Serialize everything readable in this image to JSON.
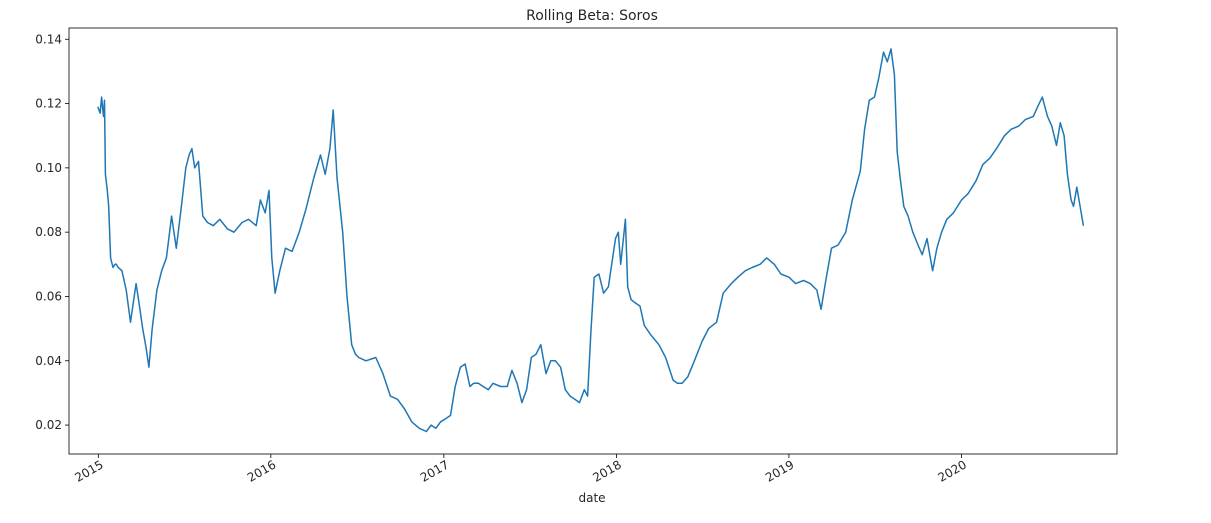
{
  "chart_data": {
    "type": "line",
    "title": "Rolling Beta: Soros",
    "xlabel": "date",
    "ylabel": "",
    "xlim": [
      "2014-10-31",
      "2020-11-25"
    ],
    "ylim": [
      0.011,
      0.1435
    ],
    "x_ticks": [
      "2015-01-01",
      "2016-01-01",
      "2017-01-01",
      "2018-01-01",
      "2019-01-01",
      "2020-01-01"
    ],
    "x_tick_labels": [
      "2015",
      "2016",
      "2017",
      "2018",
      "2019",
      "2020"
    ],
    "y_ticks": [
      0.02,
      0.04,
      0.06,
      0.08,
      0.1,
      0.12,
      0.14
    ],
    "y_tick_labels": [
      "0.02",
      "0.04",
      "0.06",
      "0.08",
      "0.10",
      "0.12",
      "0.14"
    ],
    "grid": false,
    "line_color": "#1f77b4",
    "series": [
      {
        "x": [
          "2014-12-31",
          "2015-01-05",
          "2015-01-08",
          "2015-01-12",
          "2015-01-14",
          "2015-01-16",
          "2015-01-20",
          "2015-01-23",
          "2015-01-27",
          "2015-02-01",
          "2015-02-05",
          "2015-02-08",
          "2015-02-12",
          "2015-02-20",
          "2015-03-01",
          "2015-03-10",
          "2015-03-18",
          "2015-03-22",
          "2015-03-28",
          "2015-04-05",
          "2015-04-12",
          "2015-04-18",
          "2015-04-25",
          "2015-05-05",
          "2015-05-15",
          "2015-05-25",
          "2015-06-05",
          "2015-06-15",
          "2015-06-25",
          "2015-07-05",
          "2015-07-12",
          "2015-07-18",
          "2015-07-24",
          "2015-08-01",
          "2015-08-10",
          "2015-08-20",
          "2015-09-01",
          "2015-09-15",
          "2015-10-01",
          "2015-10-15",
          "2015-11-01",
          "2015-11-15",
          "2015-12-01",
          "2015-12-10",
          "2015-12-20",
          "2015-12-28",
          "2016-01-03",
          "2016-01-10",
          "2016-01-20",
          "2016-02-01",
          "2016-02-15",
          "2016-03-01",
          "2016-03-15",
          "2016-04-01",
          "2016-04-15",
          "2016-04-25",
          "2016-05-05",
          "2016-05-12",
          "2016-05-20",
          "2016-06-01",
          "2016-06-10",
          "2016-06-20",
          "2016-06-28",
          "2016-07-05",
          "2016-07-20",
          "2016-08-10",
          "2016-08-25",
          "2016-09-10",
          "2016-09-25",
          "2016-10-10",
          "2016-10-25",
          "2016-11-10",
          "2016-11-25",
          "2016-12-05",
          "2016-12-15",
          "2016-12-25",
          "2017-01-05",
          "2017-01-15",
          "2017-01-25",
          "2017-02-05",
          "2017-02-15",
          "2017-02-25",
          "2017-03-05",
          "2017-03-15",
          "2017-03-25",
          "2017-04-05",
          "2017-04-15",
          "2017-05-01",
          "2017-05-15",
          "2017-05-25",
          "2017-06-05",
          "2017-06-15",
          "2017-06-25",
          "2017-07-05",
          "2017-07-15",
          "2017-07-25",
          "2017-08-05",
          "2017-08-15",
          "2017-08-25",
          "2017-09-05",
          "2017-09-15",
          "2017-09-25",
          "2017-10-05",
          "2017-10-15",
          "2017-10-25",
          "2017-11-01",
          "2017-11-08",
          "2017-11-15",
          "2017-11-25",
          "2017-12-05",
          "2017-12-15",
          "2017-12-22",
          "2017-12-30",
          "2018-01-05",
          "2018-01-10",
          "2018-01-20",
          "2018-01-25",
          "2018-02-01",
          "2018-02-10",
          "2018-02-20",
          "2018-03-01",
          "2018-03-15",
          "2018-04-01",
          "2018-04-15",
          "2018-05-01",
          "2018-05-10",
          "2018-05-20",
          "2018-06-01",
          "2018-06-15",
          "2018-07-01",
          "2018-07-15",
          "2018-08-01",
          "2018-08-15",
          "2018-09-01",
          "2018-09-15",
          "2018-10-01",
          "2018-10-15",
          "2018-11-01",
          "2018-11-15",
          "2018-12-01",
          "2018-12-15",
          "2019-01-01",
          "2019-01-15",
          "2019-02-01",
          "2019-02-15",
          "2019-03-01",
          "2019-03-10",
          "2019-03-20",
          "2019-04-01",
          "2019-04-15",
          "2019-05-01",
          "2019-05-15",
          "2019-06-01",
          "2019-06-10",
          "2019-06-20",
          "2019-07-01",
          "2019-07-10",
          "2019-07-20",
          "2019-07-28",
          "2019-08-05",
          "2019-08-12",
          "2019-08-18",
          "2019-08-25",
          "2019-09-01",
          "2019-09-10",
          "2019-09-20",
          "2019-10-01",
          "2019-10-10",
          "2019-10-20",
          "2019-11-01",
          "2019-11-10",
          "2019-11-20",
          "2019-12-01",
          "2019-12-15",
          "2020-01-01",
          "2020-01-15",
          "2020-02-01",
          "2020-02-15",
          "2020-03-01",
          "2020-03-15",
          "2020-04-01",
          "2020-04-15",
          "2020-05-01",
          "2020-05-15",
          "2020-06-01",
          "2020-06-10",
          "2020-06-20",
          "2020-07-01",
          "2020-07-10",
          "2020-07-20",
          "2020-07-28",
          "2020-08-05",
          "2020-08-12",
          "2020-08-20",
          "2020-08-25",
          "2020-09-01",
          "2020-09-08",
          "2020-09-15"
        ],
        "y": [
          0.119,
          0.117,
          0.122,
          0.116,
          0.121,
          0.098,
          0.093,
          0.088,
          0.072,
          0.069,
          0.07,
          0.07,
          0.069,
          0.068,
          0.062,
          0.052,
          0.06,
          0.064,
          0.058,
          0.05,
          0.044,
          0.038,
          0.05,
          0.062,
          0.068,
          0.072,
          0.085,
          0.075,
          0.087,
          0.1,
          0.104,
          0.106,
          0.1,
          0.102,
          0.085,
          0.083,
          0.082,
          0.084,
          0.081,
          0.08,
          0.083,
          0.084,
          0.082,
          0.09,
          0.086,
          0.093,
          0.072,
          0.061,
          0.068,
          0.075,
          0.074,
          0.08,
          0.087,
          0.097,
          0.104,
          0.098,
          0.106,
          0.118,
          0.097,
          0.08,
          0.06,
          0.045,
          0.042,
          0.041,
          0.04,
          0.041,
          0.036,
          0.029,
          0.028,
          0.025,
          0.021,
          0.019,
          0.018,
          0.02,
          0.019,
          0.021,
          0.022,
          0.023,
          0.032,
          0.038,
          0.039,
          0.032,
          0.033,
          0.033,
          0.032,
          0.031,
          0.033,
          0.032,
          0.032,
          0.037,
          0.033,
          0.027,
          0.031,
          0.041,
          0.042,
          0.045,
          0.036,
          0.04,
          0.04,
          0.038,
          0.031,
          0.029,
          0.028,
          0.027,
          0.031,
          0.029,
          0.049,
          0.066,
          0.067,
          0.061,
          0.063,
          0.07,
          0.078,
          0.08,
          0.07,
          0.084,
          0.063,
          0.059,
          0.058,
          0.057,
          0.051,
          0.048,
          0.045,
          0.041,
          0.034,
          0.033,
          0.033,
          0.035,
          0.04,
          0.046,
          0.05,
          0.052,
          0.061,
          0.064,
          0.066,
          0.068,
          0.069,
          0.07,
          0.072,
          0.07,
          0.067,
          0.066,
          0.064,
          0.065,
          0.064,
          0.062,
          0.056,
          0.065,
          0.075,
          0.076,
          0.08,
          0.09,
          0.099,
          0.112,
          0.121,
          0.122,
          0.128,
          0.136,
          0.133,
          0.137,
          0.129,
          0.105,
          0.096,
          0.088,
          0.085,
          0.08,
          0.076,
          0.073,
          0.078,
          0.068,
          0.075,
          0.08,
          0.084,
          0.086,
          0.09,
          0.092,
          0.096,
          0.101,
          0.103,
          0.106,
          0.11,
          0.112,
          0.113,
          0.115,
          0.116,
          0.119,
          0.122,
          0.116,
          0.113,
          0.107,
          0.114,
          0.11,
          0.098,
          0.09,
          0.088,
          0.094,
          0.088,
          0.082
        ]
      }
    ]
  }
}
